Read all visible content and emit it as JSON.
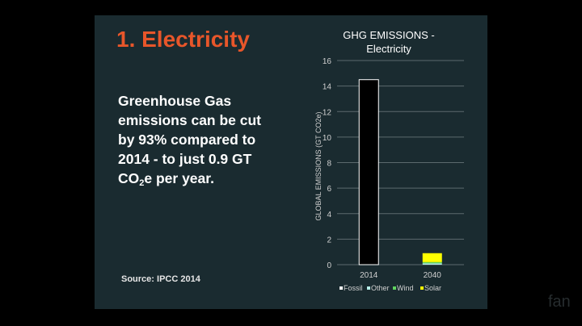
{
  "slide": {
    "title": "1. Electricity",
    "body_lines": [
      "Greenhouse Gas",
      "emissions can be cut",
      "by 93% compared to",
      "2014 - to just 0.9 GT"
    ],
    "body_last_prefix": "CO",
    "body_last_sub": "2",
    "body_last_suffix": "e per year.",
    "source": "Source: IPCC 2014",
    "watermark": "fan"
  },
  "colors": {
    "slide_background": "#1a2b30",
    "title": "#e8562a",
    "fossil": "#000000",
    "other": "#b8f0ea",
    "wind": "#5fd35f",
    "solar": "#ffff00"
  },
  "chart_data": {
    "type": "bar",
    "stacked": true,
    "title_lines": [
      "GHG EMISSIONS -",
      "Electricity"
    ],
    "xlabel": "",
    "ylabel": "GLOBAL EMISSIONS (GT CO2e)",
    "ylim": [
      0,
      16
    ],
    "yticks": [
      0,
      2,
      4,
      6,
      8,
      10,
      12,
      14,
      16
    ],
    "grid": true,
    "legend_position": "bottom",
    "categories": [
      "2014",
      "2040"
    ],
    "series": [
      {
        "name": "Fossil",
        "values": [
          14.5,
          0
        ]
      },
      {
        "name": "Other",
        "values": [
          0,
          0.1
        ]
      },
      {
        "name": "Wind",
        "values": [
          0,
          0.1
        ]
      },
      {
        "name": "Solar",
        "values": [
          0,
          0.7
        ]
      }
    ]
  }
}
